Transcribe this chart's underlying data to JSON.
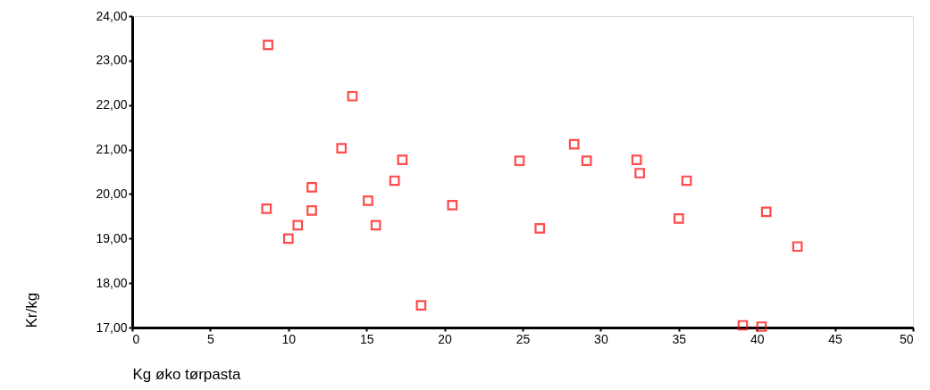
{
  "chart_data": {
    "type": "scatter",
    "xlabel": "Kg øko tørpasta",
    "ylabel": "Kr/kg",
    "x": [
      8.7,
      8.6,
      10.0,
      10.6,
      11.5,
      11.5,
      13.4,
      14.1,
      15.1,
      15.6,
      16.8,
      17.3,
      18.5,
      20.5,
      24.8,
      26.1,
      28.3,
      29.1,
      32.3,
      32.5,
      35.5,
      35.0,
      39.1,
      40.3,
      40.6,
      42.6
    ],
    "series": [
      {
        "color": "#ff0000",
        "values": [
          23.35,
          19.67,
          19.0,
          19.3,
          20.15,
          19.63,
          21.03,
          22.2,
          19.85,
          19.3,
          20.3,
          20.77,
          17.5,
          19.75,
          20.75,
          19.23,
          21.12,
          20.75,
          20.77,
          20.47,
          20.3,
          19.45,
          17.05,
          17.02,
          19.6,
          18.82
        ]
      }
    ],
    "xlim": [
      0,
      50
    ],
    "xticks": [
      0,
      5,
      10,
      15,
      20,
      25,
      30,
      35,
      40,
      45,
      50
    ],
    "ylim": [
      17,
      24
    ],
    "yticks": [
      {
        "value": 17,
        "label": "17,00"
      },
      {
        "value": 18,
        "label": "18,00"
      },
      {
        "value": 19,
        "label": "19,00"
      },
      {
        "value": 20,
        "label": "20,00"
      },
      {
        "value": 21,
        "label": "21,00"
      },
      {
        "value": 22,
        "label": "22,00"
      },
      {
        "value": 23,
        "label": "23,00"
      },
      {
        "value": 24,
        "label": "24,00"
      }
    ],
    "marker": "square",
    "grid": false,
    "legend": false
  }
}
